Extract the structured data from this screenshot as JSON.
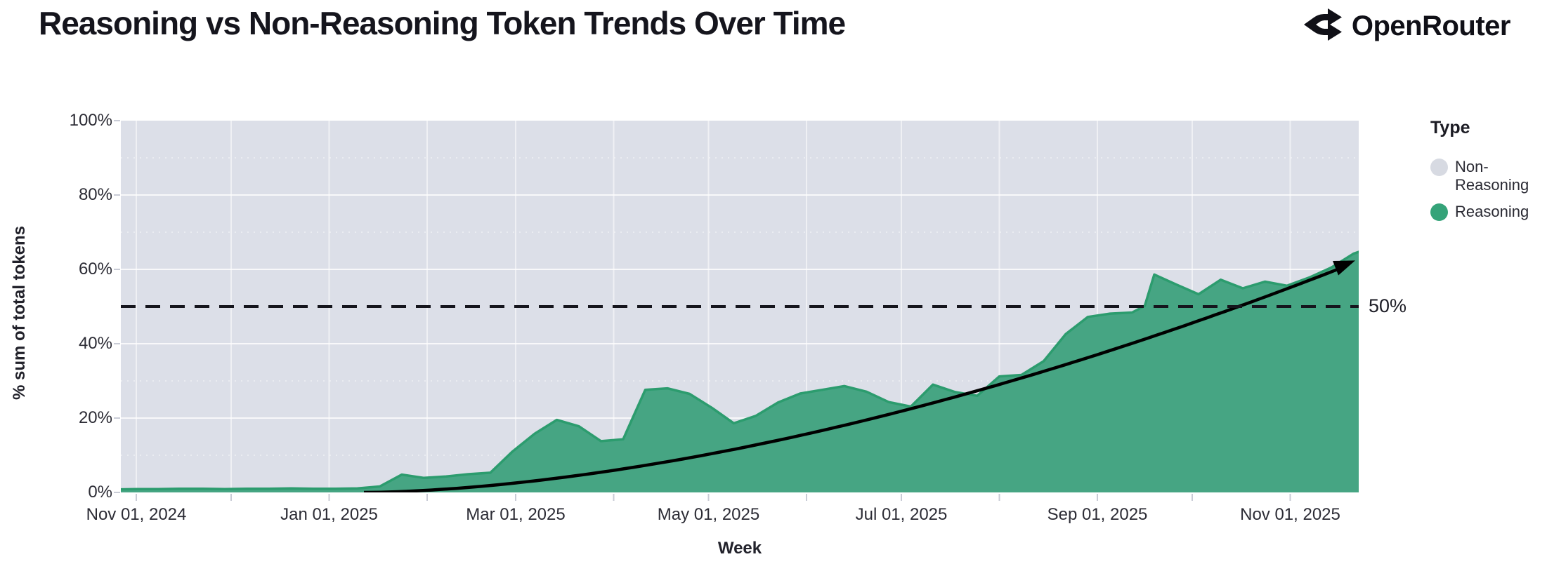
{
  "header": {
    "title": "Reasoning vs Non-Reasoning Token Trends Over Time",
    "brand": "OpenRouter"
  },
  "legend": {
    "title": "Type",
    "items": [
      {
        "label": "Non-Reasoning",
        "color": "#d7dae2"
      },
      {
        "label": "Reasoning",
        "color": "#35a379"
      }
    ]
  },
  "chart_data": {
    "type": "area",
    "stacked_percent": true,
    "title": "Reasoning vs Non-Reasoning Token Trends Over Time",
    "xlabel": "Week",
    "ylabel": "% sum of total tokens",
    "ylim": [
      0,
      100
    ],
    "grid": true,
    "legend_position": "right",
    "y_ticks": [
      {
        "label": "0%",
        "value": 0
      },
      {
        "label": "20%",
        "value": 20
      },
      {
        "label": "40%",
        "value": 40
      },
      {
        "label": "60%",
        "value": 60
      },
      {
        "label": "80%",
        "value": 80
      },
      {
        "label": "100%",
        "value": 100
      }
    ],
    "x_ticks": [
      {
        "label": "Nov 01, 2024",
        "date": "2024-11-01"
      },
      {
        "label": "Jan 01, 2025",
        "date": "2025-01-01"
      },
      {
        "label": "Mar 01, 2025",
        "date": "2025-03-01"
      },
      {
        "label": "May 01, 2025",
        "date": "2025-05-01"
      },
      {
        "label": "Jul 01, 2025",
        "date": "2025-07-01"
      },
      {
        "label": "Sep 01, 2025",
        "date": "2025-09-01"
      },
      {
        "label": "Nov 01, 2025",
        "date": "2025-11-01"
      }
    ],
    "series": [
      {
        "name": "Reasoning",
        "unit": "% of total tokens",
        "points": [
          [
            "2024-10-25",
            0.8
          ],
          [
            "2024-11-01",
            0.9
          ],
          [
            "2024-11-08",
            0.9
          ],
          [
            "2024-11-15",
            1.0
          ],
          [
            "2024-11-22",
            1.0
          ],
          [
            "2024-11-29",
            0.9
          ],
          [
            "2024-12-06",
            1.0
          ],
          [
            "2024-12-13",
            1.0
          ],
          [
            "2024-12-20",
            1.1
          ],
          [
            "2024-12-27",
            1.0
          ],
          [
            "2025-01-03",
            1.0
          ],
          [
            "2025-01-10",
            1.1
          ],
          [
            "2025-01-17",
            1.6
          ],
          [
            "2025-01-24",
            4.8
          ],
          [
            "2025-01-31",
            3.9
          ],
          [
            "2025-02-07",
            4.3
          ],
          [
            "2025-02-14",
            4.9
          ],
          [
            "2025-02-21",
            5.3
          ],
          [
            "2025-02-28",
            11.0
          ],
          [
            "2025-03-07",
            15.8
          ],
          [
            "2025-03-14",
            19.5
          ],
          [
            "2025-03-21",
            17.8
          ],
          [
            "2025-03-28",
            13.8
          ],
          [
            "2025-04-04",
            14.3
          ],
          [
            "2025-04-11",
            27.6
          ],
          [
            "2025-04-18",
            28.0
          ],
          [
            "2025-04-25",
            26.5
          ],
          [
            "2025-05-02",
            22.8
          ],
          [
            "2025-05-09",
            18.6
          ],
          [
            "2025-05-16",
            20.6
          ],
          [
            "2025-05-23",
            24.2
          ],
          [
            "2025-05-30",
            26.6
          ],
          [
            "2025-06-06",
            27.6
          ],
          [
            "2025-06-13",
            28.6
          ],
          [
            "2025-06-20",
            27.1
          ],
          [
            "2025-06-27",
            24.3
          ],
          [
            "2025-07-04",
            23.1
          ],
          [
            "2025-07-11",
            29.0
          ],
          [
            "2025-07-18",
            27.0
          ],
          [
            "2025-07-25",
            26.0
          ],
          [
            "2025-08-01",
            31.2
          ],
          [
            "2025-08-08",
            31.6
          ],
          [
            "2025-08-15",
            35.3
          ],
          [
            "2025-08-22",
            42.6
          ],
          [
            "2025-08-29",
            47.2
          ],
          [
            "2025-09-05",
            48.1
          ],
          [
            "2025-09-12",
            48.4
          ],
          [
            "2025-09-16",
            50.2
          ],
          [
            "2025-09-19",
            58.6
          ],
          [
            "2025-09-26",
            55.9
          ],
          [
            "2025-10-03",
            53.3
          ],
          [
            "2025-10-10",
            57.2
          ],
          [
            "2025-10-17",
            54.9
          ],
          [
            "2025-10-24",
            56.7
          ],
          [
            "2025-10-31",
            55.6
          ],
          [
            "2025-11-07",
            57.8
          ],
          [
            "2025-11-14",
            60.5
          ],
          [
            "2025-11-21",
            64.2
          ],
          [
            "2025-11-23",
            64.8
          ]
        ]
      },
      {
        "name": "Non-Reasoning",
        "derived": "100 minus Reasoning (remainder of 100% stacked area)"
      }
    ],
    "annotations": {
      "reference_line": {
        "value": 50,
        "label": "50%",
        "style": "dashed",
        "color": "#15151d"
      },
      "trend_arrow": {
        "description": "smooth accelerating curve with arrowhead",
        "start": [
          "2025-01-12",
          0
        ],
        "end": [
          "2025-11-22",
          62
        ],
        "curve_exponent": 1.7,
        "color": "#000000"
      }
    }
  },
  "colors": {
    "reasoning_fill": "#46a583",
    "reasoning_stroke": "#2c9c6e",
    "non_reasoning_bg": "#dcdfe8",
    "grid_major": "#ffffff",
    "grid_minor": "#eceef3",
    "tick_mark": "#c9ccd6",
    "text_dark": "#15151d"
  }
}
